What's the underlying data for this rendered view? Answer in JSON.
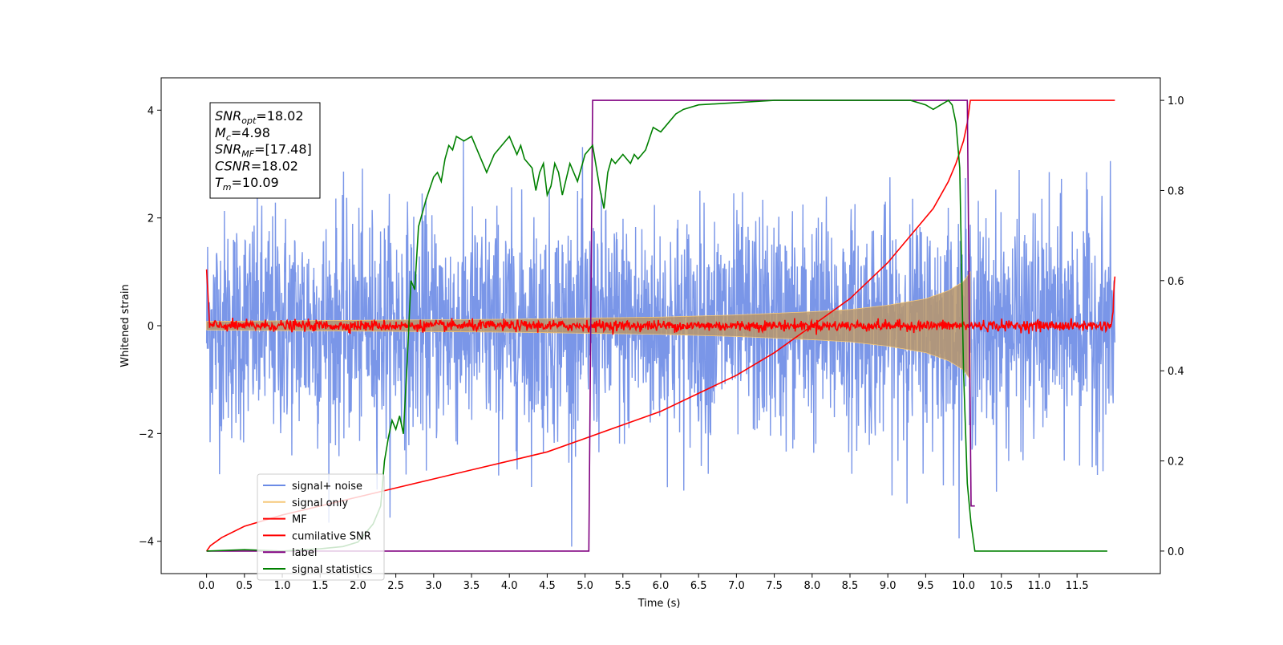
{
  "chart_data": {
    "type": "line",
    "xlabel": "Time (s)",
    "ylabel": "Whitened strain",
    "xlim": [
      -0.6,
      12.6
    ],
    "ylim": [
      -4.6,
      4.6
    ],
    "y2lim": [
      -0.05,
      1.05
    ],
    "x_ticks": [
      0.0,
      0.5,
      1.0,
      1.5,
      2.0,
      2.5,
      3.0,
      3.5,
      4.0,
      4.5,
      5.0,
      5.5,
      6.0,
      6.5,
      7.0,
      7.5,
      8.0,
      8.5,
      9.0,
      9.5,
      10.0,
      10.5,
      11.0,
      11.5
    ],
    "x_tick_labels": [
      "0.0",
      "0.5",
      "1.0",
      "1.5",
      "2.0",
      "2.5",
      "3.0",
      "3.5",
      "4.0",
      "4.5",
      "5.0",
      "5.5",
      "6.0",
      "6.5",
      "7.0",
      "7.5",
      "8.0",
      "8.5",
      "9.0",
      "9.5",
      "10.0",
      "10.5",
      "11.0",
      "11.5"
    ],
    "y_ticks": [
      -4,
      -2,
      0,
      2,
      4
    ],
    "y_tick_labels": [
      "−4",
      "−2",
      "0",
      "2",
      "4"
    ],
    "y2_ticks": [
      0.0,
      0.2,
      0.4,
      0.6,
      0.8,
      1.0
    ],
    "y2_tick_labels": [
      "0.0",
      "0.2",
      "0.4",
      "0.6",
      "0.8",
      "1.0"
    ],
    "legend_placement": "lower-left",
    "grid": false,
    "annotation": {
      "lines": [
        {
          "sym": "SNR",
          "sub": "opt",
          "text": "=18.02"
        },
        {
          "sym": "M",
          "sub": "c",
          "text": "=4.98"
        },
        {
          "sym": "SNR",
          "sub": "MF",
          "text": "=[17.48]"
        },
        {
          "sym": "CSNR",
          "sub": "",
          "text": "=18.02"
        },
        {
          "sym": "T",
          "sub": "m",
          "text": "=10.09"
        }
      ]
    },
    "series": [
      {
        "name": "signal+ noise",
        "axis": "left",
        "color": "#6b8be6",
        "kind": "noise",
        "time_range": [
          0.0,
          12.0
        ],
        "std": 1.0
      },
      {
        "name": "signal only",
        "axis": "left",
        "color": "#f5c879",
        "kind": "chirp",
        "time_range": [
          0.0,
          10.09
        ],
        "envelope_t": [
          0.0,
          2.0,
          4.0,
          6.0,
          7.0,
          8.0,
          8.5,
          9.0,
          9.5,
          9.8,
          10.0,
          10.09
        ],
        "envelope_amp": [
          0.08,
          0.1,
          0.12,
          0.16,
          0.2,
          0.26,
          0.3,
          0.38,
          0.5,
          0.65,
          0.82,
          1.0
        ]
      },
      {
        "name": "MF",
        "axis": "left",
        "color": "#ff0000",
        "kind": "mf",
        "time_range": [
          0.0,
          12.0
        ],
        "spike_start": 1.0,
        "spike_end": 0.95,
        "noise_std": 0.05
      },
      {
        "name": "cumilative SNR",
        "axis": "right",
        "color": "#ff0000",
        "x": [
          0.0,
          0.05,
          0.2,
          0.5,
          1.0,
          1.5,
          2.0,
          2.5,
          3.0,
          3.5,
          4.0,
          4.5,
          5.0,
          5.5,
          6.0,
          6.5,
          7.0,
          7.5,
          8.0,
          8.5,
          9.0,
          9.3,
          9.6,
          9.8,
          9.9,
          10.0,
          10.05,
          10.09,
          12.0
        ],
        "values": [
          0.0,
          0.012,
          0.03,
          0.055,
          0.08,
          0.1,
          0.12,
          0.14,
          0.16,
          0.18,
          0.2,
          0.22,
          0.25,
          0.28,
          0.31,
          0.35,
          0.39,
          0.44,
          0.5,
          0.56,
          0.64,
          0.7,
          0.76,
          0.82,
          0.86,
          0.91,
          0.95,
          1.0,
          1.0
        ]
      },
      {
        "name": "label",
        "axis": "right",
        "color": "#800080",
        "x": [
          0.0,
          5.05,
          5.1,
          10.05,
          10.1,
          10.15
        ],
        "values": [
          0.0,
          0.0,
          1.0,
          1.0,
          0.1,
          0.1
        ]
      },
      {
        "name": "signal statistics",
        "axis": "right",
        "color": "#008000",
        "x": [
          0.0,
          0.5,
          1.0,
          1.5,
          1.8,
          2.0,
          2.1,
          2.2,
          2.3,
          2.35,
          2.4,
          2.45,
          2.5,
          2.55,
          2.6,
          2.65,
          2.7,
          2.75,
          2.8,
          2.9,
          3.0,
          3.05,
          3.1,
          3.15,
          3.2,
          3.25,
          3.3,
          3.4,
          3.5,
          3.6,
          3.7,
          3.75,
          3.8,
          3.9,
          4.0,
          4.05,
          4.1,
          4.15,
          4.2,
          4.3,
          4.35,
          4.4,
          4.45,
          4.5,
          4.55,
          4.6,
          4.65,
          4.7,
          4.8,
          4.9,
          5.0,
          5.05,
          5.1,
          5.15,
          5.2,
          5.25,
          5.3,
          5.35,
          5.4,
          5.5,
          5.6,
          5.65,
          5.7,
          5.8,
          5.9,
          6.0,
          6.1,
          6.2,
          6.3,
          6.5,
          7.0,
          7.5,
          8.0,
          8.5,
          9.0,
          9.3,
          9.5,
          9.6,
          9.7,
          9.75,
          9.8,
          9.85,
          9.9,
          9.95,
          10.0,
          10.05,
          10.1,
          10.15,
          10.2,
          10.5,
          11.0,
          11.5,
          11.9
        ],
        "values": [
          0.0,
          0.003,
          0.0,
          0.005,
          0.01,
          0.02,
          0.04,
          0.06,
          0.1,
          0.2,
          0.25,
          0.29,
          0.27,
          0.3,
          0.26,
          0.42,
          0.6,
          0.58,
          0.72,
          0.78,
          0.83,
          0.84,
          0.82,
          0.87,
          0.9,
          0.89,
          0.92,
          0.91,
          0.92,
          0.88,
          0.84,
          0.86,
          0.88,
          0.9,
          0.92,
          0.9,
          0.88,
          0.9,
          0.87,
          0.85,
          0.8,
          0.84,
          0.86,
          0.79,
          0.81,
          0.86,
          0.84,
          0.79,
          0.86,
          0.82,
          0.88,
          0.89,
          0.9,
          0.85,
          0.8,
          0.76,
          0.84,
          0.87,
          0.86,
          0.88,
          0.86,
          0.88,
          0.87,
          0.89,
          0.94,
          0.93,
          0.95,
          0.97,
          0.98,
          0.99,
          0.995,
          1.0,
          1.0,
          1.0,
          1.0,
          1.0,
          0.99,
          0.98,
          0.99,
          0.995,
          1.0,
          0.99,
          0.95,
          0.85,
          0.4,
          0.15,
          0.06,
          0.0,
          0.0,
          0.0,
          0.0,
          0.0,
          0.0
        ]
      }
    ]
  }
}
